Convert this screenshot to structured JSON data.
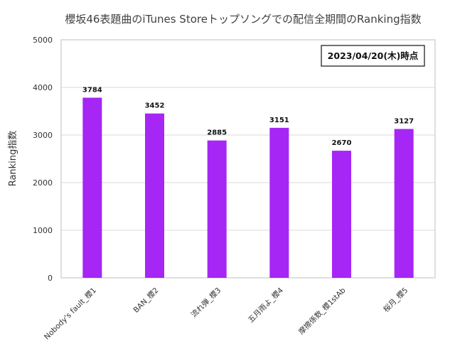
{
  "chart_data": {
    "type": "bar",
    "title": "櫻坂46表題曲のiTunes Storeトップソングでの配信全期間のRanking指数",
    "ylabel": "Ranking指数",
    "xlabel": "",
    "ylim": [
      0,
      5000
    ],
    "yticks": [
      0,
      1000,
      2000,
      3000,
      4000,
      5000
    ],
    "grid": true,
    "categories": [
      "Nobody's fault_櫻1",
      "BAN_櫻2",
      "流れ弾_櫻3",
      "五月雨よ_櫻4",
      "摩擦係数_櫻1stAb",
      "桜月_櫻5"
    ],
    "values": [
      3784,
      3452,
      2885,
      3151,
      2670,
      3127
    ],
    "data_labels": [
      "3784",
      "3452",
      "2885",
      "3151",
      "2670",
      "3127"
    ],
    "annotation": "2023/04/20(木)時点",
    "bar_color": "#a626f5"
  }
}
